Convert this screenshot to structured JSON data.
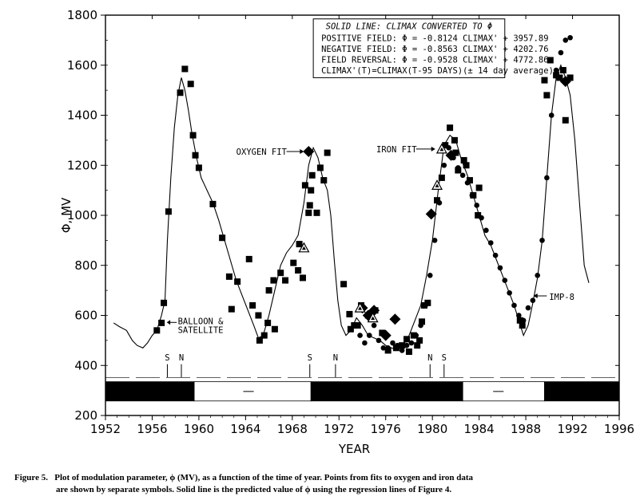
{
  "chart_data": {
    "type": "scatter",
    "xlabel": "YEAR",
    "ylabel": "Φ, MV",
    "xlim": [
      1952,
      1996
    ],
    "ylim": [
      200,
      1800
    ],
    "x_ticks": [
      "1952",
      "1956",
      "1960",
      "1964",
      "1968",
      "1972",
      "1976",
      "1980",
      "1984",
      "1988",
      "1992",
      "1996"
    ],
    "y_ticks": [
      "200",
      "400",
      "600",
      "800",
      "1000",
      "1200",
      "1400",
      "1600",
      "1800"
    ],
    "grid": false,
    "legend_box": {
      "title": "SOLID LINE: CLIMAX CONVERTED TO Φ",
      "lines": [
        "POSITIVE FIELD:  Φ = -0.8124 CLIMAX' + 3957.89",
        "NEGATIVE FIELD:  Φ = -0.8563 CLIMAX' + 4202.76",
        "FIELD REVERSAL:  Φ = -0.9528 CLIMAX' + 4772.86",
        "CLIMAX'(T)=CLIMAX(T-95 DAYS)(± 14 day average)"
      ]
    },
    "annotations": [
      {
        "text": "BALLOON &",
        "x": 1957.2,
        "y": 565
      },
      {
        "text": "SATELLITE",
        "x": 1957.2,
        "y": 530
      },
      {
        "text": "OXYGEN FIT",
        "x": 1969.3,
        "y": 1255
      },
      {
        "text": "IRON FIT",
        "x": 1980.0,
        "y": 1265
      },
      {
        "text": "IMP-8",
        "x": 1988.5,
        "y": 675
      }
    ],
    "field_markers": [
      {
        "label": "S",
        "x": 1957.3
      },
      {
        "label": "N",
        "x": 1958.5
      },
      {
        "label": "S",
        "x": 1969.5
      },
      {
        "label": "N",
        "x": 1971.7
      },
      {
        "label": "N",
        "x": 1979.8
      },
      {
        "label": "S",
        "x": 1981.0
      }
    ],
    "polarity_bars": [
      {
        "x0": 1952,
        "x1": 1959.6,
        "fill": "black"
      },
      {
        "x0": 1959.6,
        "x1": 1969.6,
        "fill": "white"
      },
      {
        "x0": 1969.6,
        "x1": 1982.6,
        "fill": "black"
      },
      {
        "x0": 1982.6,
        "x1": 1989.6,
        "fill": "white"
      },
      {
        "x0": 1989.6,
        "x1": 1996,
        "fill": "black"
      }
    ],
    "series": [
      {
        "name": "Climax converted to Φ",
        "style": "line",
        "x": [
          1952.7,
          1953.2,
          1953.8,
          1954.3,
          1954.7,
          1955.2,
          1955.6,
          1956.0,
          1956.4,
          1956.8,
          1957.1,
          1957.3,
          1957.6,
          1957.9,
          1958.2,
          1958.5,
          1958.8,
          1959.1,
          1959.4,
          1959.8,
          1960.2,
          1960.7,
          1961.2,
          1961.7,
          1962.2,
          1962.7,
          1963.2,
          1963.7,
          1964.2,
          1964.7,
          1965.1,
          1965.5,
          1966.0,
          1966.5,
          1967.0,
          1967.5,
          1968.0,
          1968.5,
          1969.0,
          1969.4,
          1969.8,
          1970.2,
          1970.6,
          1971.0,
          1971.3,
          1971.6,
          1971.9,
          1972.2,
          1972.6,
          1973.0,
          1973.5,
          1974.0,
          1974.5,
          1975.0,
          1975.5,
          1976.0,
          1976.5,
          1977.0,
          1977.5,
          1978.0,
          1978.5,
          1979.0,
          1979.5,
          1980.0,
          1980.5,
          1981.0,
          1981.5,
          1982.0,
          1982.5,
          1983.0,
          1983.5,
          1984.0,
          1984.5,
          1985.0,
          1985.5,
          1986.0,
          1986.5,
          1987.0,
          1987.4,
          1987.8,
          1988.2,
          1988.6,
          1989.0,
          1989.4,
          1989.8,
          1990.2,
          1990.6,
          1991.0,
          1991.4,
          1991.8,
          1992.2,
          1992.6,
          1993.0,
          1993.4
        ],
        "y": [
          570,
          555,
          540,
          500,
          480,
          470,
          490,
          520,
          540,
          600,
          660,
          900,
          1150,
          1350,
          1480,
          1550,
          1500,
          1420,
          1330,
          1230,
          1150,
          1100,
          1050,
          980,
          900,
          820,
          740,
          680,
          620,
          560,
          510,
          520,
          600,
          700,
          800,
          850,
          880,
          920,
          1050,
          1200,
          1270,
          1230,
          1150,
          1100,
          1000,
          820,
          660,
          560,
          520,
          540,
          590,
          560,
          520,
          510,
          500,
          480,
          470,
          460,
          480,
          520,
          580,
          640,
          760,
          900,
          1100,
          1280,
          1320,
          1300,
          1220,
          1160,
          1080,
          1000,
          920,
          880,
          820,
          760,
          700,
          640,
          580,
          520,
          560,
          650,
          750,
          900,
          1150,
          1400,
          1550,
          1600,
          1550,
          1480,
          1300,
          1050,
          800,
          730
        ]
      },
      {
        "name": "Balloon & satellite",
        "style": "square",
        "x": [
          1956.4,
          1956.8,
          1957.0,
          1957.4,
          1958.4,
          1958.8,
          1959.3,
          1959.5,
          1959.7,
          1960.0,
          1961.2,
          1962.0,
          1962.6,
          1962.8,
          1963.3,
          1964.3,
          1964.6,
          1965.1,
          1965.2,
          1965.6,
          1965.9,
          1966.0,
          1966.4,
          1966.5,
          1967.0,
          1967.4,
          1968.1,
          1968.5,
          1968.6,
          1968.9,
          1969.1,
          1969.4,
          1969.5,
          1969.6,
          1969.7,
          1970.1,
          1970.4,
          1970.7,
          1971.0,
          1972.4,
          1972.9,
          1973.0,
          1973.3,
          1973.6,
          1973.9,
          1974.5,
          1975.1,
          1975.7,
          1976.2,
          1976.9,
          1977.4,
          1977.8,
          1978.0,
          1978.4,
          1978.7,
          1978.9,
          1979.1,
          1979.3,
          1979.6,
          1980.4,
          1980.8,
          1981.1,
          1981.5,
          1981.9,
          1982.0,
          1982.2,
          1982.7,
          1982.9,
          1983.2,
          1983.5,
          1983.9,
          1984.0,
          1987.5,
          1987.7,
          1989.6,
          1989.8,
          1990.1,
          1990.6,
          1990.9,
          1991.2,
          1991.4,
          1991.8
        ],
        "y": [
          540,
          570,
          650,
          1015,
          1490,
          1585,
          1525,
          1320,
          1240,
          1190,
          1045,
          910,
          755,
          625,
          735,
          825,
          640,
          600,
          500,
          520,
          570,
          700,
          740,
          545,
          770,
          740,
          810,
          780,
          885,
          750,
          1120,
          1010,
          1040,
          1100,
          1160,
          1010,
          1190,
          1140,
          1250,
          725,
          605,
          545,
          560,
          560,
          640,
          600,
          620,
          530,
          460,
          470,
          480,
          505,
          455,
          520,
          480,
          500,
          575,
          640,
          650,
          1060,
          1150,
          1280,
          1350,
          1300,
          1250,
          1180,
          1220,
          1200,
          1140,
          1080,
          1000,
          1110,
          580,
          560,
          1540,
          1480,
          1620,
          1560,
          1550,
          1580,
          1380,
          1550
        ]
      },
      {
        "name": "IMP-8",
        "style": "circle",
        "x": [
          1973.8,
          1974.2,
          1974.6,
          1975.0,
          1975.4,
          1975.8,
          1976.2,
          1976.6,
          1977.0,
          1977.4,
          1977.8,
          1978.2,
          1978.6,
          1979.0,
          1979.4,
          1979.8,
          1980.2,
          1980.6,
          1981.0,
          1981.4,
          1981.8,
          1982.2,
          1982.6,
          1983.0,
          1983.4,
          1983.8,
          1984.2,
          1984.6,
          1985.0,
          1985.4,
          1985.8,
          1986.2,
          1986.6,
          1987.0,
          1987.4,
          1987.8,
          1988.2,
          1988.6,
          1989.0,
          1989.4,
          1989.8,
          1990.2,
          1990.6,
          1991.0,
          1991.4,
          1991.8
        ],
        "y": [
          520,
          490,
          520,
          560,
          500,
          470,
          470,
          490,
          480,
          460,
          480,
          490,
          520,
          560,
          640,
          760,
          900,
          1050,
          1200,
          1270,
          1230,
          1190,
          1160,
          1130,
          1080,
          1040,
          990,
          940,
          890,
          840,
          790,
          740,
          690,
          640,
          600,
          580,
          630,
          660,
          760,
          900,
          1150,
          1400,
          1580,
          1650,
          1700,
          1710
        ]
      },
      {
        "name": "Oxygen fit",
        "style": "diamond",
        "x": [
          1969.4,
          1974.0,
          1974.5,
          1975.0,
          1976.0,
          1976.8,
          1979.9,
          1981.6,
          1991.4
        ],
        "y": [
          1255,
          630,
          600,
          620,
          520,
          585,
          1005,
          1240,
          1535
        ]
      },
      {
        "name": "Iron fit",
        "style": "triangle",
        "x": [
          1969.0,
          1973.8,
          1974.9,
          1980.4,
          1980.8
        ],
        "y": [
          870,
          630,
          590,
          1120,
          1265
        ]
      }
    ]
  },
  "caption": {
    "label": "Figure 5.",
    "line1": "Plot of modulation parameter, ϕ (MV), as a function of the time of year. Points from fits to oxygen and iron data",
    "line2": "are shown by separate symbols. Solid line is the predicted value of ϕ using the regression lines  of Figure 4."
  }
}
